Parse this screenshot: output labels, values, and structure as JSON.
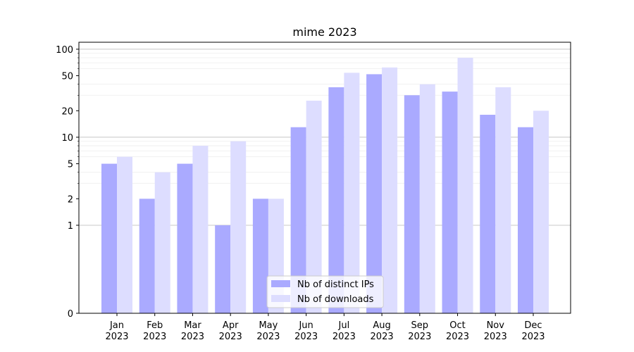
{
  "chart_data": {
    "type": "bar",
    "title": "mime 2023",
    "xlabel": "",
    "ylabel": "",
    "y_scale": "symlog",
    "ylim": [
      0,
      120
    ],
    "y_ticks": [
      0,
      1,
      2,
      5,
      10,
      20,
      50,
      100
    ],
    "grid": "horizontal",
    "legend_position": "bottom-center",
    "categories": [
      [
        "Jan",
        "2023"
      ],
      [
        "Feb",
        "2023"
      ],
      [
        "Mar",
        "2023"
      ],
      [
        "Apr",
        "2023"
      ],
      [
        "May",
        "2023"
      ],
      [
        "Jun",
        "2023"
      ],
      [
        "Jul",
        "2023"
      ],
      [
        "Aug",
        "2023"
      ],
      [
        "Sep",
        "2023"
      ],
      [
        "Oct",
        "2023"
      ],
      [
        "Nov",
        "2023"
      ],
      [
        "Dec",
        "2023"
      ]
    ],
    "series": [
      {
        "name": "Nb of distinct IPs",
        "color": "#aaaaff",
        "values": [
          5,
          2,
          5,
          1,
          2,
          13,
          37,
          52,
          30,
          33,
          18,
          13
        ]
      },
      {
        "name": "Nb of downloads",
        "color": "#ddddff",
        "values": [
          6,
          4,
          8,
          9,
          2,
          26,
          54,
          62,
          40,
          80,
          37,
          20
        ]
      }
    ]
  }
}
